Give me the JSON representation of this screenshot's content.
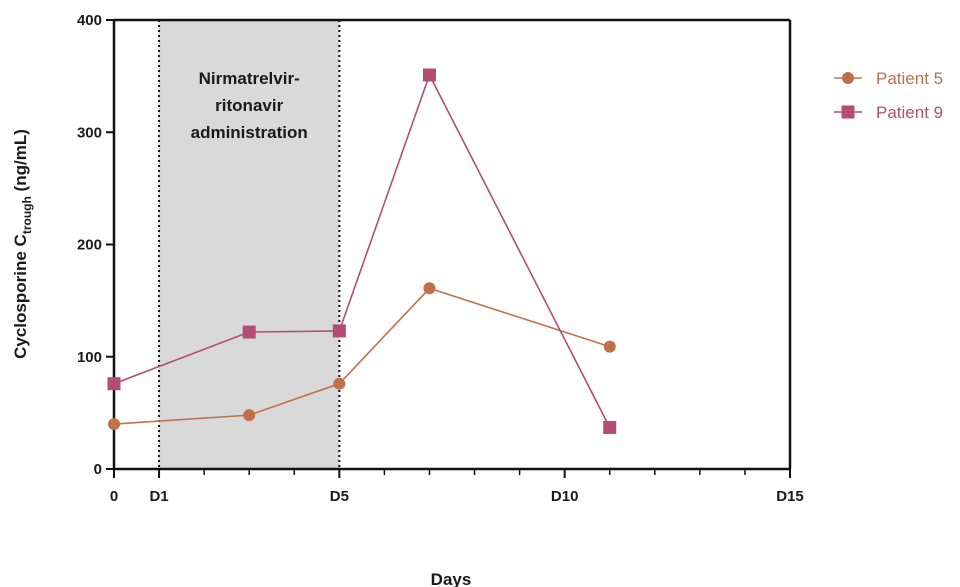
{
  "chart_data": {
    "type": "line",
    "xlabel": "Days",
    "ylabel": "Cyclosporine C",
    "ylabel_subscript": "trough",
    "ylabel_unit": "(ng/mL)",
    "xlim": [
      0,
      15
    ],
    "ylim": [
      0,
      400
    ],
    "x_ticks": [
      {
        "value": 0,
        "label": "0"
      },
      {
        "value": 1,
        "label": "D1"
      },
      {
        "value": 5,
        "label": "D5"
      },
      {
        "value": 10,
        "label": "D10"
      },
      {
        "value": 15,
        "label": "D15"
      }
    ],
    "x_minor_ticks": [
      2,
      3,
      4,
      6,
      7,
      8,
      9,
      11,
      12,
      13,
      14
    ],
    "y_ticks": [
      {
        "value": 0,
        "label": "0"
      },
      {
        "value": 100,
        "label": "100"
      },
      {
        "value": 200,
        "label": "200"
      },
      {
        "value": 300,
        "label": "300"
      },
      {
        "value": 400,
        "label": "400"
      }
    ],
    "shaded_region": {
      "x_start": 1,
      "x_end": 5,
      "label_lines": [
        "Nirmatrelvir-",
        "ritonavir",
        "administration"
      ],
      "color": "#d9d9d9"
    },
    "series": [
      {
        "name": "Patient 5",
        "marker": "circle",
        "color": "#c0704a",
        "points": [
          {
            "x": 0,
            "y": 40
          },
          {
            "x": 3,
            "y": 48
          },
          {
            "x": 5,
            "y": 76
          },
          {
            "x": 7,
            "y": 161
          },
          {
            "x": 11,
            "y": 109
          }
        ]
      },
      {
        "name": "Patient 9",
        "marker": "square",
        "color": "#b34d73",
        "points": [
          {
            "x": 0,
            "y": 76
          },
          {
            "x": 3,
            "y": 122
          },
          {
            "x": 5,
            "y": 123
          },
          {
            "x": 7,
            "y": 351
          },
          {
            "x": 11,
            "y": 37
          }
        ]
      }
    ],
    "legend_position": "top-right",
    "grid": false
  }
}
